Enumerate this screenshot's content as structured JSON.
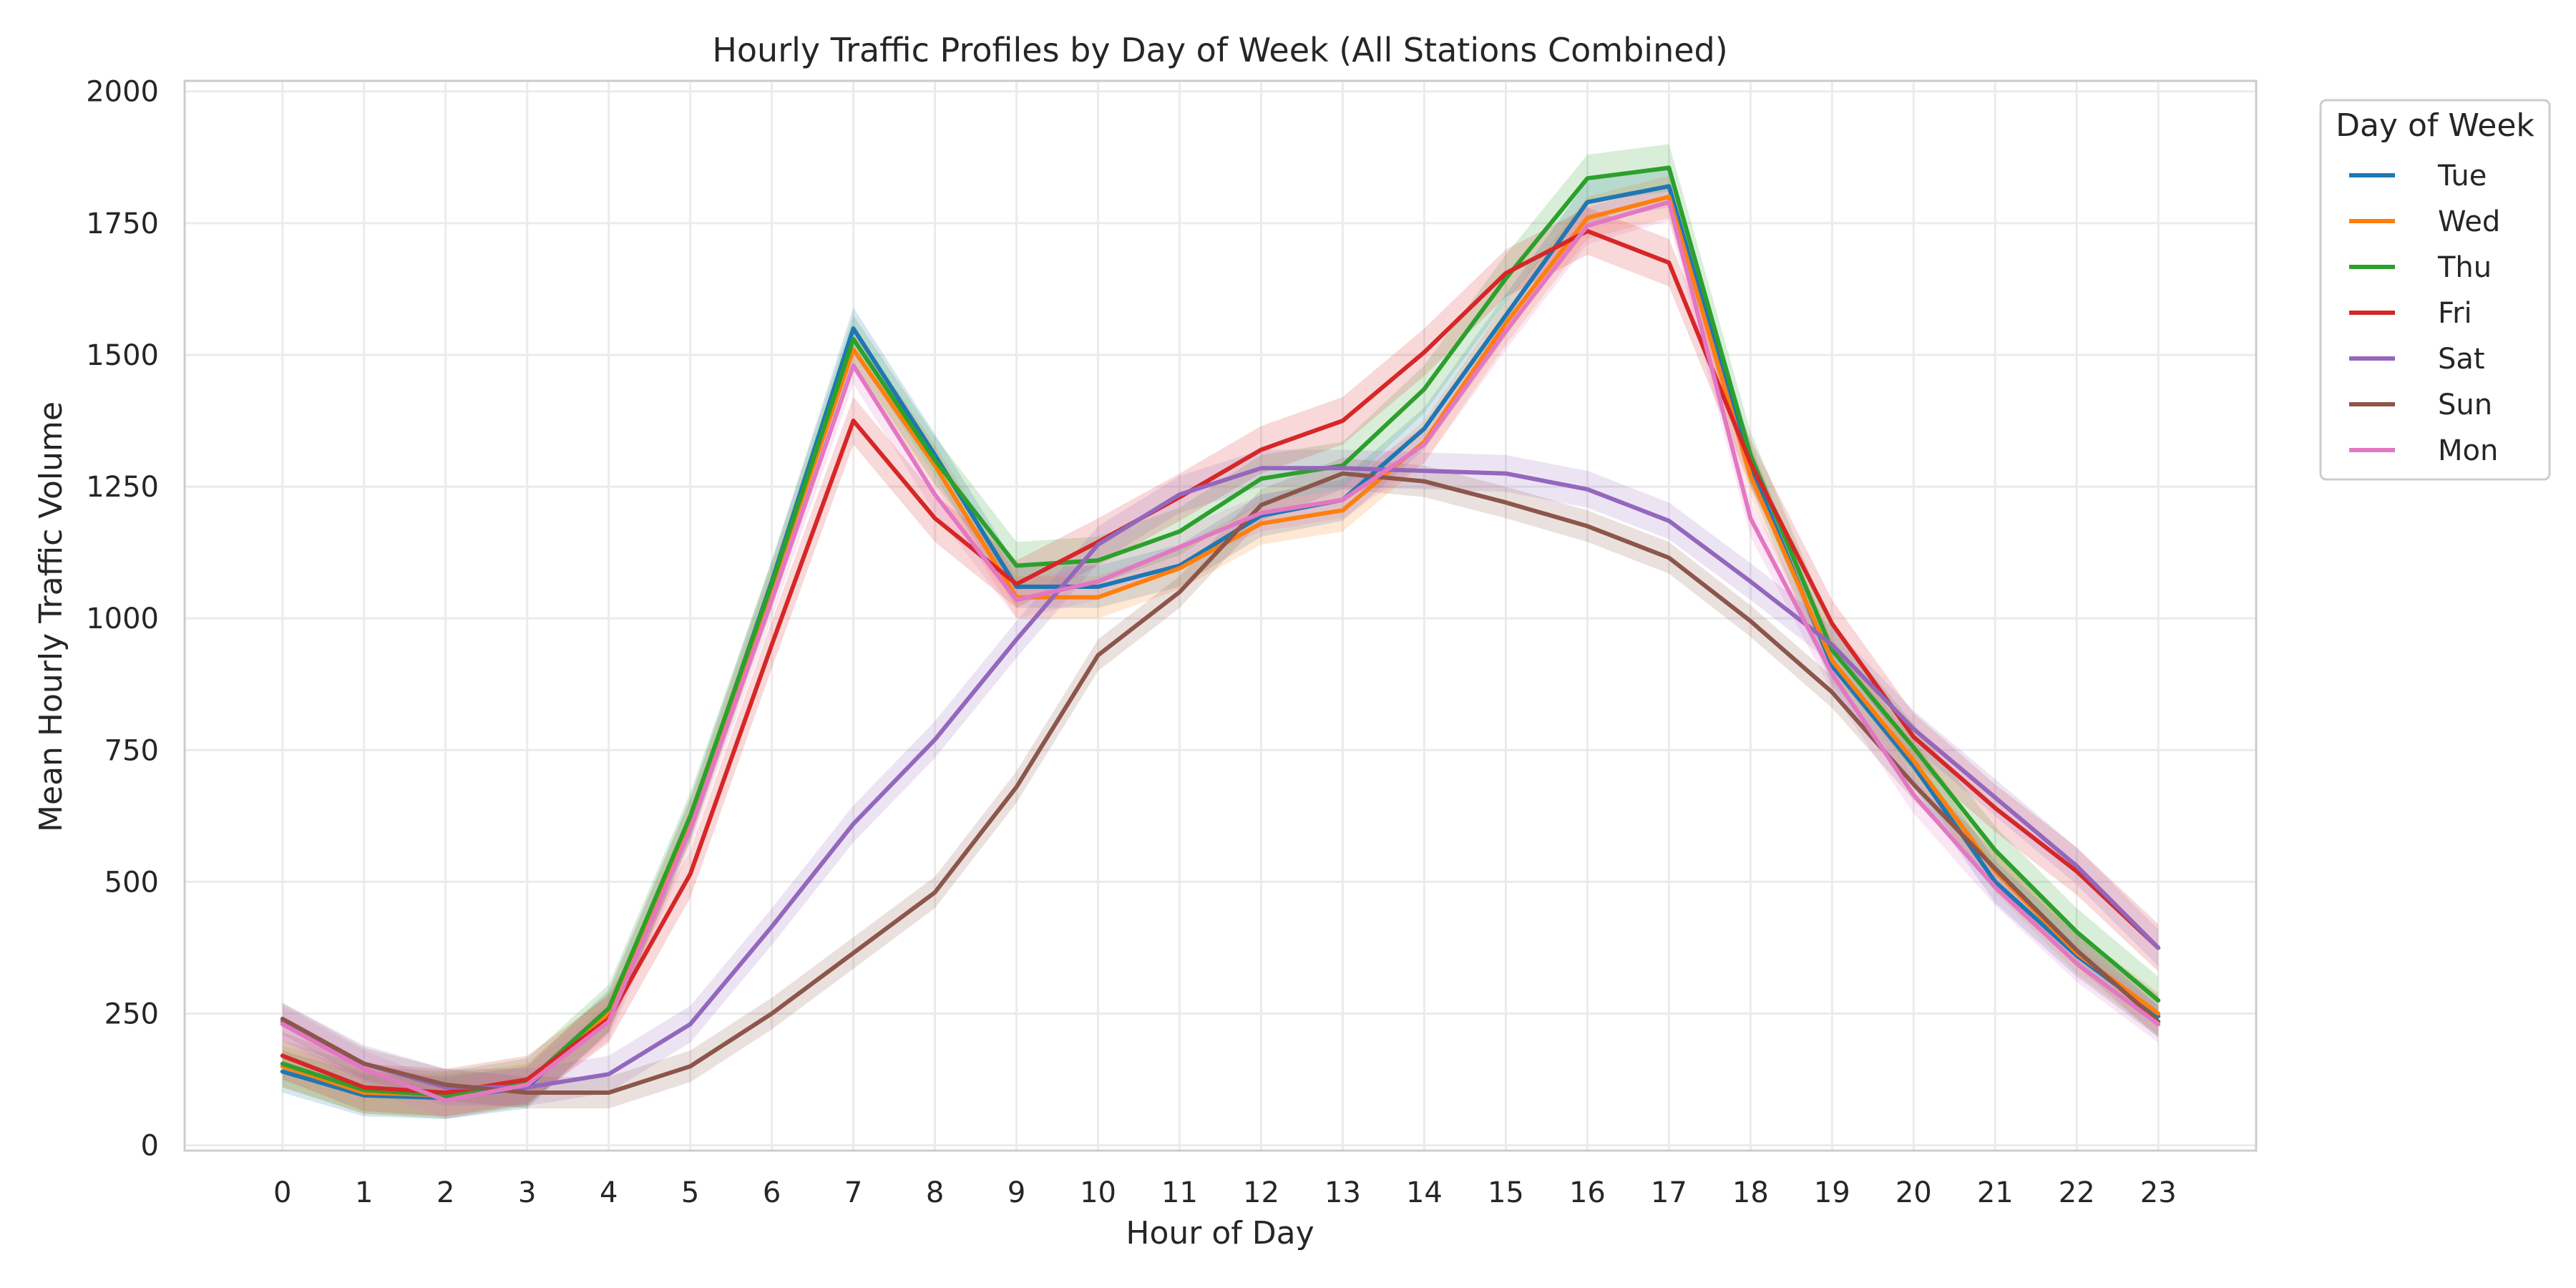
{
  "chart_data": {
    "type": "line",
    "title": "Hourly Traffic Profiles by Day of Week (All Stations Combined)",
    "xlabel": "Hour of Day",
    "ylabel": "Mean Hourly Traffic Volume",
    "x": [
      0,
      1,
      2,
      3,
      4,
      5,
      6,
      7,
      8,
      9,
      10,
      11,
      12,
      13,
      14,
      15,
      16,
      17,
      18,
      19,
      20,
      21,
      22,
      23
    ],
    "xlim": [
      -1.2,
      24.2
    ],
    "ylim": [
      -10,
      2020
    ],
    "yticks": [
      0,
      250,
      500,
      750,
      1000,
      1250,
      1500,
      1750,
      2000
    ],
    "grid": true,
    "legend": {
      "title": "Day of Week",
      "position": "outside top-right"
    },
    "series": [
      {
        "name": "Tue",
        "color": "#1f77b4",
        "band": 40,
        "values": [
          140,
          95,
          90,
          110,
          255,
          620,
          1070,
          1550,
          1310,
          1060,
          1060,
          1100,
          1195,
          1225,
          1360,
          1575,
          1790,
          1820,
          1290,
          910,
          720,
          500,
          360,
          245
        ]
      },
      {
        "name": "Wed",
        "color": "#ff7f0e",
        "band": 40,
        "values": [
          150,
          100,
          95,
          115,
          250,
          615,
          1060,
          1510,
          1290,
          1040,
          1040,
          1095,
          1180,
          1205,
          1335,
          1560,
          1760,
          1800,
          1270,
          920,
          730,
          520,
          365,
          250
        ]
      },
      {
        "name": "Thu",
        "color": "#2ca02c",
        "band": 45,
        "values": [
          155,
          105,
          95,
          120,
          260,
          625,
          1065,
          1530,
          1300,
          1100,
          1110,
          1165,
          1265,
          1290,
          1435,
          1645,
          1835,
          1855,
          1310,
          940,
          755,
          560,
          405,
          275
        ]
      },
      {
        "name": "Fri",
        "color": "#d62728",
        "band": 45,
        "values": [
          170,
          110,
          100,
          125,
          240,
          515,
          950,
          1375,
          1190,
          1065,
          1145,
          1230,
          1320,
          1375,
          1505,
          1655,
          1735,
          1675,
          1295,
          990,
          775,
          640,
          520,
          375
        ]
      },
      {
        "name": "Sat",
        "color": "#9467bd",
        "band": 35,
        "values": [
          235,
          155,
          110,
          110,
          135,
          230,
          415,
          610,
          770,
          960,
          1140,
          1235,
          1285,
          1285,
          1280,
          1275,
          1245,
          1185,
          1070,
          950,
          790,
          660,
          530,
          375
        ]
      },
      {
        "name": "Sun",
        "color": "#8c564b",
        "band": 30,
        "values": [
          240,
          155,
          115,
          100,
          100,
          150,
          250,
          365,
          480,
          680,
          930,
          1050,
          1215,
          1275,
          1260,
          1220,
          1175,
          1115,
          995,
          860,
          685,
          525,
          370,
          235
        ]
      },
      {
        "name": "Mon",
        "color": "#e377c2",
        "band": 35,
        "values": [
          230,
          145,
          85,
          115,
          235,
          600,
          1035,
          1480,
          1235,
          1035,
          1070,
          1135,
          1200,
          1225,
          1330,
          1545,
          1745,
          1790,
          1190,
          895,
          665,
          490,
          345,
          230
        ]
      }
    ]
  }
}
